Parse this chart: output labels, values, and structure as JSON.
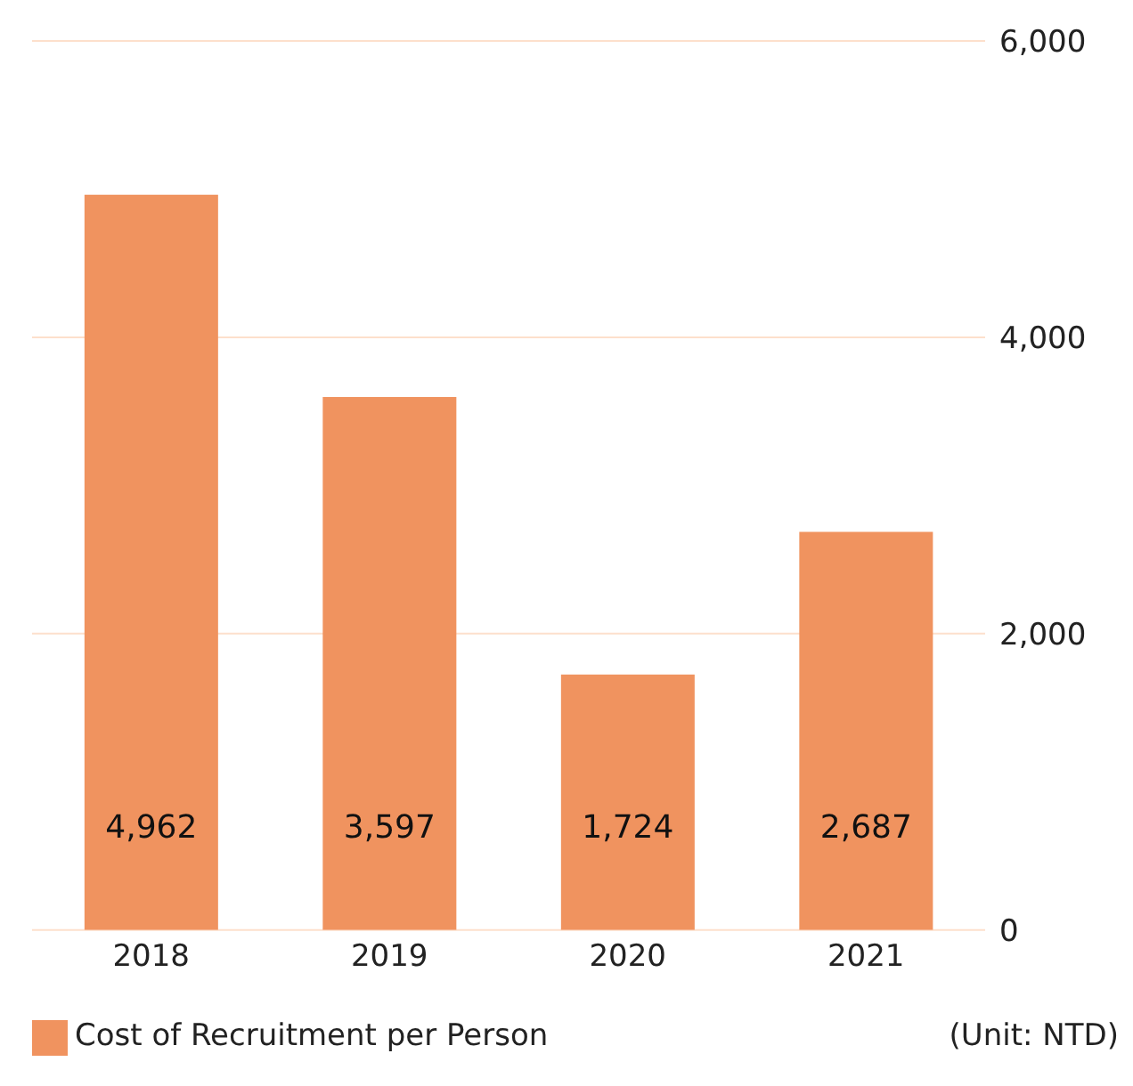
{
  "chart_data": {
    "type": "bar",
    "categories": [
      "2018",
      "2019",
      "2020",
      "2021"
    ],
    "series": [
      {
        "name": "Cost of Recruitment per Person",
        "color": "#f0935f",
        "values": [
          4962,
          3597,
          1724,
          2687
        ],
        "value_labels": [
          "4,962",
          "3,597",
          "1,724",
          "2,687"
        ]
      }
    ],
    "ylim": [
      0,
      6000
    ],
    "yticks": [
      {
        "value": 0,
        "label": "0"
      },
      {
        "value": 2000,
        "label": "2,000"
      },
      {
        "value": 4000,
        "label": "4,000"
      },
      {
        "value": 6000,
        "label": "6,000"
      }
    ],
    "grid": "y",
    "legend": "bottom left",
    "annotations": [
      "(Unit: NTD)"
    ]
  }
}
